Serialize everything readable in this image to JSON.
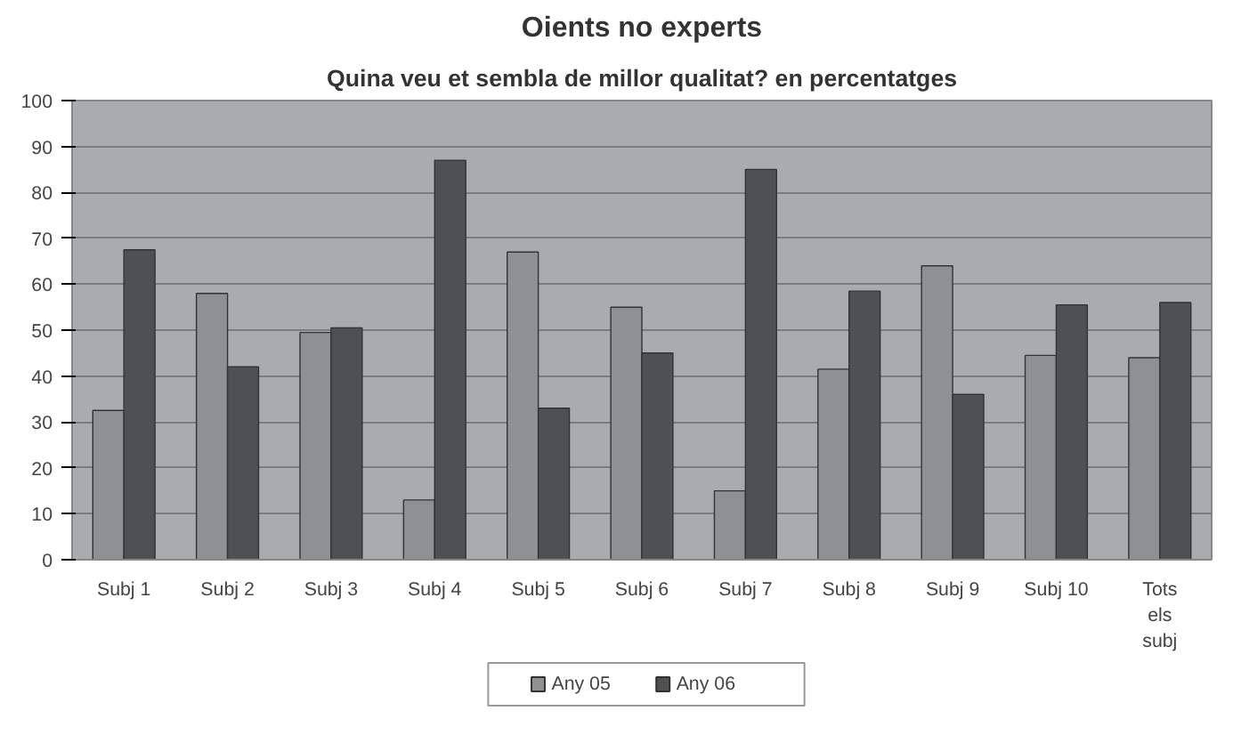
{
  "chart_data": {
    "type": "bar",
    "title": "Oients no experts",
    "subtitle": "Quina veu et sembla de millor qualitat? en percentatges",
    "categories": [
      "Subj 1",
      "Subj 2",
      "Subj 3",
      "Subj 4",
      "Subj 5",
      "Subj 6",
      "Subj 7",
      "Subj 8",
      "Subj 9",
      "Subj 10",
      "Tots els subj"
    ],
    "series": [
      {
        "name": "Any 05",
        "color": "#8e9093",
        "values": [
          32.5,
          58,
          49.5,
          13,
          67,
          55,
          15,
          41.5,
          64,
          44.5,
          44
        ]
      },
      {
        "name": "Any 06",
        "color": "#4f5052",
        "values": [
          67.5,
          42,
          50.5,
          87,
          33,
          45,
          85,
          58.5,
          36,
          55.5,
          56
        ]
      }
    ],
    "ylim": [
      0,
      100
    ],
    "yticks": [
      0,
      10,
      20,
      30,
      40,
      50,
      60,
      70,
      80,
      90,
      100
    ],
    "grid": "y",
    "legend": "bottom"
  }
}
